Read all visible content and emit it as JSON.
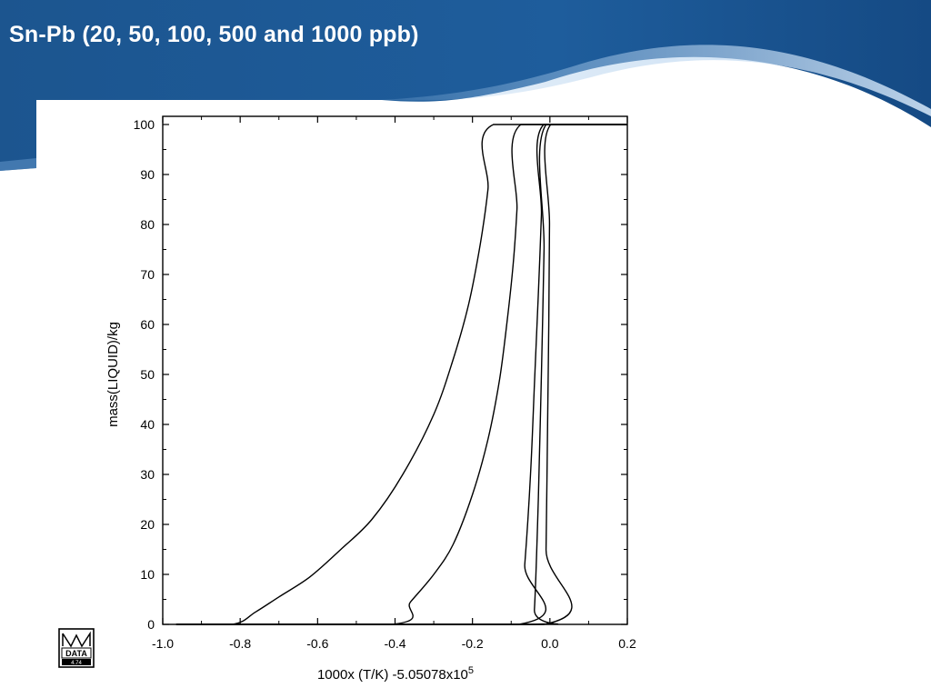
{
  "slide": {
    "title": "Sn-Pb (20, 50, 100, 500 and 1000 ppb)"
  },
  "logo": {
    "text": "DATA",
    "version": "4.74",
    "icon": "mtdata-logo-icon"
  },
  "colors": {
    "banner_dark": "#0f3f78",
    "banner_mid": "#2a6bb0",
    "banner_light": "#6fa3d8",
    "line": "#000000"
  },
  "chart_data": {
    "type": "line",
    "title": "",
    "xlabel": "1000x (T/K) -5.05078x10",
    "xlabel_superscript": "5",
    "ylabel": "mass(LIQUID)/kg",
    "xlim": [
      -1.0,
      0.2
    ],
    "ylim": [
      0,
      100
    ],
    "x_ticks": [
      "-1.0",
      "-0.8",
      "-0.6",
      "-0.4",
      "-0.2",
      "0.0",
      "0.2"
    ],
    "y_ticks": [
      "0",
      "10",
      "20",
      "30",
      "40",
      "50",
      "60",
      "70",
      "80",
      "90",
      "100"
    ],
    "grid": false,
    "series": [
      {
        "x": [
          -0.965,
          -0.82,
          -0.76,
          -0.7,
          -0.62,
          -0.54,
          -0.46,
          -0.38,
          -0.3,
          -0.25,
          -0.21,
          -0.18,
          -0.16,
          -0.146,
          0.2
        ],
        "y": [
          0,
          0,
          2.5,
          5.5,
          9.5,
          15,
          21,
          30,
          42,
          53,
          64,
          76,
          87,
          100,
          100
        ]
      },
      {
        "x": [
          -0.965,
          -0.41,
          -0.36,
          -0.3,
          -0.25,
          -0.2,
          -0.16,
          -0.13,
          -0.11,
          -0.095,
          -0.085,
          -0.075,
          0.2
        ],
        "y": [
          0,
          0,
          4.5,
          10,
          16,
          26,
          37,
          49,
          61,
          72,
          83,
          100,
          100
        ]
      },
      {
        "x": [
          -0.965,
          -0.08,
          -0.065,
          -0.05,
          -0.04,
          -0.03,
          -0.022,
          -0.016,
          0.2
        ],
        "y": [
          0,
          0,
          12,
          30,
          48,
          66,
          82,
          100,
          100
        ]
      },
      {
        "x": [
          -0.965,
          -0.05,
          -0.04,
          -0.03,
          -0.022,
          -0.015,
          -0.01,
          0.2
        ],
        "y": [
          0,
          0,
          3,
          25,
          50,
          75,
          100,
          100
        ]
      },
      {
        "x": [
          -0.965,
          -0.015,
          -0.01,
          -0.006,
          -0.003,
          -0.001,
          0.002,
          0.2
        ],
        "y": [
          0,
          0,
          15,
          40,
          60,
          80,
          100,
          100
        ]
      }
    ]
  }
}
